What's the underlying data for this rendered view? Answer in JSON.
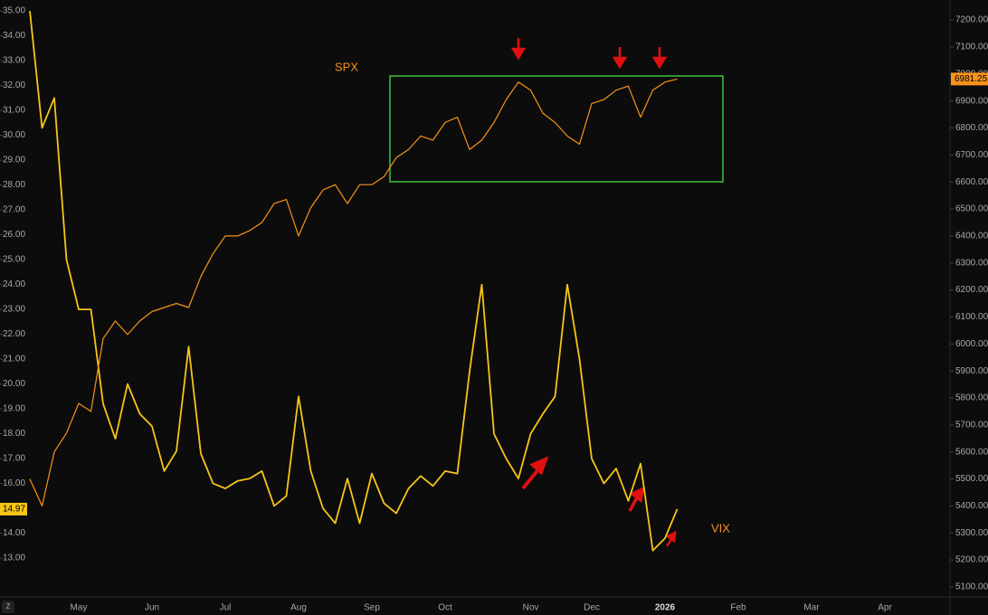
{
  "chart_data": {
    "type": "line",
    "categories": [
      null,
      null,
      null,
      null,
      "May",
      null,
      null,
      null,
      null,
      null,
      "Jun",
      null,
      null,
      null,
      null,
      null,
      "Jul",
      null,
      null,
      null,
      null,
      null,
      "Aug",
      null,
      null,
      null,
      null,
      null,
      "Sep",
      null,
      null,
      null,
      null,
      null,
      "Oct",
      null,
      null,
      null,
      null,
      null,
      null,
      "Nov",
      null,
      null,
      null,
      null,
      "Dec",
      null,
      null,
      null,
      null,
      null,
      "2026",
      null,
      null,
      null,
      null,
      null,
      "Feb",
      null,
      null,
      null,
      null,
      null,
      "Mar",
      null,
      null,
      null,
      null,
      null,
      "Apr",
      null,
      null,
      null,
      null
    ],
    "series": [
      {
        "name": "VIX",
        "color": "#f5c518",
        "axis": "y",
        "values": [
          35.0,
          30.3,
          31.5,
          25.0,
          23.0,
          23.0,
          19.2,
          17.8,
          20.0,
          18.8,
          18.3,
          16.5,
          17.3,
          21.5,
          17.2,
          16.0,
          15.8,
          16.1,
          16.2,
          16.5,
          15.1,
          15.5,
          19.5,
          16.5,
          15.0,
          14.4,
          16.2,
          14.4,
          16.4,
          15.2,
          14.8,
          15.8,
          16.3,
          15.9,
          16.5,
          16.4,
          20.5,
          24.0,
          18.0,
          17.0,
          16.2,
          18.0,
          18.8,
          19.5,
          24.0,
          21.0,
          17.0,
          16.0,
          16.6,
          15.3,
          16.8,
          13.3,
          13.8,
          14.97,
          null,
          null,
          null,
          null,
          null,
          null,
          null,
          null,
          null,
          null,
          null,
          null,
          null,
          null,
          null,
          null,
          null,
          null,
          null,
          null,
          null
        ]
      },
      {
        "name": "SPX",
        "color": "#f7931a",
        "axis": "y2",
        "values": [
          5500,
          5400,
          5600,
          5670,
          5780,
          5750,
          6020,
          6085,
          6035,
          6085,
          6120,
          6135,
          6150,
          6135,
          6250,
          6335,
          6400,
          6400,
          6420,
          6450,
          6520,
          6535,
          6400,
          6505,
          6570,
          6590,
          6520,
          6590,
          6590,
          6620,
          6690,
          6720,
          6770,
          6755,
          6820,
          6840,
          6720,
          6755,
          6820,
          6905,
          6970,
          6940,
          6855,
          6820,
          6770,
          6740,
          6890,
          6905,
          6940,
          6955,
          6840,
          6940,
          6970,
          6981.25,
          null,
          null,
          null,
          null,
          null,
          null,
          null,
          null,
          null,
          null,
          null,
          null,
          null,
          null,
          null,
          null,
          null,
          null,
          null,
          null,
          null
        ]
      }
    ],
    "ylim": [
      11.44,
      35.44
    ],
    "yticks": [
      {
        "value": 13,
        "label": "13.00"
      },
      {
        "value": 14,
        "label": "14.00"
      },
      {
        "value": 15,
        "label": "15.00"
      },
      {
        "value": 16,
        "label": "16.00"
      },
      {
        "value": 17,
        "label": "17.00"
      },
      {
        "value": 18,
        "label": "18.00"
      },
      {
        "value": 19,
        "label": "19.00"
      },
      {
        "value": 20,
        "label": "20.00"
      },
      {
        "value": 21,
        "label": "21.00"
      },
      {
        "value": 22,
        "label": "22.00"
      },
      {
        "value": 23,
        "label": "23.00"
      },
      {
        "value": 24,
        "label": "24.00"
      },
      {
        "value": 25,
        "label": "25.00"
      },
      {
        "value": 26,
        "label": "26.00"
      },
      {
        "value": 27,
        "label": "27.00"
      },
      {
        "value": 28,
        "label": "28.00"
      },
      {
        "value": 29,
        "label": "29.00"
      },
      {
        "value": 30,
        "label": "30.00"
      },
      {
        "value": 31,
        "label": "31.00"
      },
      {
        "value": 32,
        "label": "32.00"
      },
      {
        "value": 33,
        "label": "33.00"
      },
      {
        "value": 34,
        "label": "34.00"
      },
      {
        "value": 35,
        "label": "35.00"
      }
    ],
    "y2lim": [
      5063,
      7274
    ],
    "y2ticks": [
      {
        "value": 5100,
        "label": "5100.00"
      },
      {
        "value": 5200,
        "label": "5200.00"
      },
      {
        "value": 5300,
        "label": "5300.00"
      },
      {
        "value": 5400,
        "label": "5400.00"
      },
      {
        "value": 5500,
        "label": "5500.00"
      },
      {
        "value": 5600,
        "label": "5600.00"
      },
      {
        "value": 5700,
        "label": "5700.00"
      },
      {
        "value": 5800,
        "label": "5800.00"
      },
      {
        "value": 5900,
        "label": "5900.00"
      },
      {
        "value": 6000,
        "label": "6000.00"
      },
      {
        "value": 6100,
        "label": "6100.00"
      },
      {
        "value": 6200,
        "label": "6200.00"
      },
      {
        "value": 6300,
        "label": "6300.00"
      },
      {
        "value": 6400,
        "label": "6400.00"
      },
      {
        "value": 6500,
        "label": "6500.00"
      },
      {
        "value": 6600,
        "label": "6600.00"
      },
      {
        "value": 6700,
        "label": "6700.00"
      },
      {
        "value": 6800,
        "label": "6800.00"
      },
      {
        "value": 6900,
        "label": "6900.00"
      },
      {
        "value": 7000,
        "label": "7000.00"
      },
      {
        "value": 7100,
        "label": "7100.00"
      },
      {
        "value": 7200,
        "label": "7200.00"
      }
    ],
    "grid": false
  }
}
